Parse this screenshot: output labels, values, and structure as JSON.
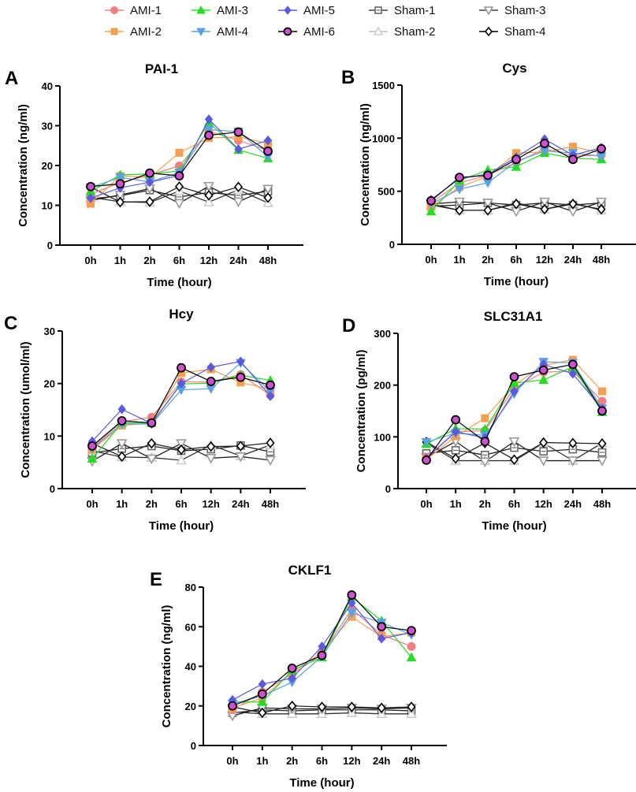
{
  "legend": {
    "placement": "top-center",
    "items": [
      {
        "name": "AMI-1",
        "color": "#f08080",
        "marker": "circle",
        "fill": "#f08080",
        "stroke": "#f08080"
      },
      {
        "name": "AMI-2",
        "color": "#f5a050",
        "marker": "square",
        "fill": "#f5a050",
        "stroke": "#f5a050"
      },
      {
        "name": "AMI-3",
        "color": "#22dd22",
        "marker": "triangle-up",
        "fill": "#22dd22",
        "stroke": "#22dd22"
      },
      {
        "name": "AMI-4",
        "color": "#5aa0e6",
        "marker": "triangle-down",
        "fill": "#5aa0e6",
        "stroke": "#5aa0e6"
      },
      {
        "name": "AMI-5",
        "color": "#5a5ae0",
        "marker": "diamond",
        "fill": "#5a5ae0",
        "stroke": "#5a5ae0"
      },
      {
        "name": "AMI-6",
        "color": "#000000",
        "marker": "circle",
        "fill": "#d050d0",
        "stroke": "#000000"
      },
      {
        "name": "Sham-1",
        "color": "#444444",
        "marker": "square-open",
        "fill": "none",
        "stroke": "#666666"
      },
      {
        "name": "Sham-2",
        "color": "#bbbbbb",
        "marker": "triangle-up-open",
        "fill": "none",
        "stroke": "#cccccc"
      },
      {
        "name": "Sham-3",
        "color": "#444444",
        "marker": "triangle-down-open",
        "fill": "none",
        "stroke": "#999999"
      },
      {
        "name": "Sham-4",
        "color": "#000000",
        "marker": "diamond-open",
        "fill": "none",
        "stroke": "#000000"
      }
    ]
  },
  "chart_data": [
    {
      "panel": "A",
      "type": "line",
      "title": "PAI-1",
      "xlabel": "Time (hour)",
      "ylabel": "Concentration (ng/ml)",
      "categories": [
        "0h",
        "1h",
        "2h",
        "6h",
        "12h",
        "24h",
        "48h"
      ],
      "ylim": [
        0,
        40
      ],
      "yticks": [
        0,
        10,
        20,
        30,
        40
      ],
      "grid": false,
      "series": [
        {
          "name": "AMI-1",
          "values": [
            12.8,
            15.7,
            17.6,
            19.9,
            28.6,
            26.3,
            23.8
          ]
        },
        {
          "name": "AMI-2",
          "values": [
            10.4,
            17.4,
            17.0,
            23.2,
            26.9,
            27.2,
            25.5
          ]
        },
        {
          "name": "AMI-3",
          "values": [
            13.5,
            17.6,
            17.9,
            18.6,
            30.8,
            23.9,
            21.8
          ]
        },
        {
          "name": "AMI-4",
          "values": [
            14.5,
            17.0,
            15.9,
            18.2,
            29.0,
            28.5,
            22.2
          ]
        },
        {
          "name": "AMI-5",
          "values": [
            11.8,
            14.4,
            15.8,
            17.5,
            31.6,
            24.1,
            26.3
          ]
        },
        {
          "name": "AMI-6",
          "values": [
            14.7,
            15.4,
            18.1,
            17.4,
            27.6,
            28.4,
            23.6
          ]
        },
        {
          "name": "Sham-1",
          "values": [
            11.6,
            12.4,
            13.8,
            12.1,
            13.2,
            12.5,
            13.5
          ]
        },
        {
          "name": "Sham-2",
          "values": [
            12.0,
            10.9,
            10.7,
            13.6,
            10.8,
            13.9,
            10.6
          ]
        },
        {
          "name": "Sham-3",
          "values": [
            11.2,
            12.6,
            14.2,
            10.5,
            14.8,
            10.9,
            14.1
          ]
        },
        {
          "name": "Sham-4",
          "values": [
            14.6,
            10.8,
            10.9,
            14.7,
            12.5,
            14.6,
            11.9
          ]
        }
      ]
    },
    {
      "panel": "B",
      "type": "line",
      "title": "Cys",
      "xlabel": "Time (hour)",
      "ylabel": "Concentration (ng/ml)",
      "categories": [
        "0h",
        "1h",
        "2h",
        "6h",
        "12h",
        "24h",
        "48h"
      ],
      "ylim": [
        0,
        1500
      ],
      "yticks": [
        0,
        500,
        1000,
        1500
      ],
      "grid": false,
      "series": [
        {
          "name": "AMI-1",
          "values": [
            390,
            580,
            650,
            770,
            900,
            830,
            840
          ]
        },
        {
          "name": "AMI-2",
          "values": [
            350,
            540,
            640,
            860,
            870,
            920,
            860
          ]
        },
        {
          "name": "AMI-3",
          "values": [
            310,
            600,
            700,
            730,
            860,
            810,
            800
          ]
        },
        {
          "name": "AMI-4",
          "values": [
            380,
            520,
            580,
            780,
            880,
            860,
            830
          ]
        },
        {
          "name": "AMI-5",
          "values": [
            420,
            620,
            660,
            820,
            990,
            840,
            910
          ]
        },
        {
          "name": "AMI-6",
          "values": [
            410,
            630,
            650,
            800,
            950,
            800,
            900
          ]
        },
        {
          "name": "Sham-1",
          "values": [
            360,
            370,
            390,
            370,
            390,
            370,
            390
          ]
        },
        {
          "name": "Sham-2",
          "values": [
            370,
            320,
            320,
            390,
            330,
            390,
            320
          ]
        },
        {
          "name": "Sham-3",
          "values": [
            380,
            400,
            390,
            310,
            400,
            310,
            400
          ]
        },
        {
          "name": "Sham-4",
          "values": [
            380,
            320,
            320,
            380,
            330,
            380,
            330
          ]
        }
      ]
    },
    {
      "panel": "C",
      "type": "line",
      "title": "Hcy",
      "xlabel": "Time (hour)",
      "ylabel": "Concentration (umol/ml)",
      "categories": [
        "0h",
        "1h",
        "2h",
        "6h",
        "12h",
        "24h",
        "48h"
      ],
      "ylim": [
        0,
        30
      ],
      "yticks": [
        0,
        10,
        20,
        30
      ],
      "grid": false,
      "series": [
        {
          "name": "AMI-1",
          "values": [
            7.8,
            12.7,
            13.6,
            20.3,
            20.3,
            21.7,
            17.8
          ]
        },
        {
          "name": "AMI-2",
          "values": [
            7.4,
            12.0,
            12.5,
            22.0,
            22.7,
            20.2,
            18.9
          ]
        },
        {
          "name": "AMI-3",
          "values": [
            5.7,
            12.5,
            12.5,
            19.9,
            20.1,
            21.6,
            20.6
          ]
        },
        {
          "name": "AMI-4",
          "values": [
            7.6,
            12.3,
            12.3,
            18.8,
            19.0,
            23.9,
            18.5
          ]
        },
        {
          "name": "AMI-5",
          "values": [
            9.0,
            15.1,
            12.4,
            20.0,
            23.1,
            24.2,
            17.6
          ]
        },
        {
          "name": "AMI-6",
          "values": [
            8.1,
            12.9,
            12.5,
            23.0,
            20.4,
            21.2,
            19.7
          ]
        },
        {
          "name": "Sham-1",
          "values": [
            6.8,
            7.6,
            8.1,
            7.2,
            7.5,
            8.2,
            7.0
          ]
        },
        {
          "name": "Sham-2",
          "values": [
            7.2,
            6.0,
            5.9,
            5.4,
            8.3,
            6.2,
            8.3
          ]
        },
        {
          "name": "Sham-3",
          "values": [
            5.2,
            8.6,
            5.7,
            8.6,
            5.8,
            6.1,
            5.4
          ]
        },
        {
          "name": "Sham-4",
          "values": [
            8.6,
            6.1,
            8.6,
            7.4,
            8.0,
            8.1,
            8.7
          ]
        }
      ]
    },
    {
      "panel": "D",
      "type": "line",
      "title": "SLC31A1",
      "xlabel": "Time (hour)",
      "ylabel": "Concentration (pg/ml)",
      "categories": [
        "0h",
        "1h",
        "2h",
        "6h",
        "12h",
        "24h",
        "48h"
      ],
      "ylim": [
        0,
        300
      ],
      "yticks": [
        0,
        100,
        200,
        300
      ],
      "grid": false,
      "series": [
        {
          "name": "AMI-1",
          "values": [
            60,
            110,
            112,
            194,
            225,
            227,
            169
          ]
        },
        {
          "name": "AMI-2",
          "values": [
            56,
            101,
            136,
            200,
            238,
            249,
            188
          ]
        },
        {
          "name": "AMI-3",
          "values": [
            86,
            116,
            115,
            204,
            210,
            235,
            148
          ]
        },
        {
          "name": "AMI-4",
          "values": [
            90,
            107,
            103,
            183,
            245,
            243,
            155
          ]
        },
        {
          "name": "AMI-5",
          "values": [
            58,
            110,
            98,
            188,
            240,
            222,
            154
          ]
        },
        {
          "name": "AMI-6",
          "values": [
            55,
            133,
            91,
            216,
            229,
            240,
            150
          ]
        },
        {
          "name": "Sham-1",
          "values": [
            68,
            74,
            65,
            79,
            72,
            76,
            70
          ]
        },
        {
          "name": "Sham-2",
          "values": [
            88,
            54,
            54,
            54,
            88,
            54,
            88
          ]
        },
        {
          "name": "Sham-3",
          "values": [
            60,
            91,
            52,
            91,
            54,
            54,
            54
          ]
        },
        {
          "name": "Sham-4",
          "values": [
            90,
            58,
            88,
            56,
            89,
            88,
            87
          ]
        }
      ]
    },
    {
      "panel": "E",
      "type": "line",
      "title": "CKLF1",
      "xlabel": "Time (hour)",
      "ylabel": "Concentration (ng/ml)",
      "categories": [
        "0h",
        "1h",
        "2h",
        "6h",
        "12h",
        "24h",
        "48h"
      ],
      "ylim": [
        0,
        80
      ],
      "yticks": [
        0,
        20,
        40,
        60,
        80
      ],
      "grid": false,
      "series": [
        {
          "name": "AMI-1",
          "values": [
            18.0,
            27.0,
            36.0,
            46.0,
            69.0,
            56.0,
            50.0
          ]
        },
        {
          "name": "AMI-2",
          "values": [
            19.0,
            24.0,
            37.0,
            47.0,
            65.0,
            55.0,
            57.0
          ]
        },
        {
          "name": "AMI-3",
          "values": [
            22.0,
            22.0,
            38.0,
            44.5,
            75.0,
            63.0,
            44.5
          ]
        },
        {
          "name": "AMI-4",
          "values": [
            21.0,
            25.0,
            32.0,
            45.0,
            67.0,
            62.0,
            56.0
          ]
        },
        {
          "name": "AMI-5",
          "values": [
            23.0,
            31.0,
            34.0,
            50.0,
            72.0,
            54.0,
            57.0
          ]
        },
        {
          "name": "AMI-6",
          "values": [
            20.0,
            26.0,
            39.0,
            45.5,
            76.0,
            60.0,
            58.0
          ]
        },
        {
          "name": "Sham-1",
          "values": [
            16.5,
            18.0,
            17.5,
            18.0,
            18.0,
            18.0,
            17.5
          ]
        },
        {
          "name": "Sham-2",
          "values": [
            17.0,
            16.0,
            16.0,
            16.0,
            16.5,
            16.0,
            16.0
          ]
        },
        {
          "name": "Sham-3",
          "values": [
            15.0,
            19.0,
            18.5,
            18.5,
            19.0,
            18.5,
            19.0
          ]
        },
        {
          "name": "Sham-4",
          "values": [
            19.5,
            16.5,
            20.0,
            19.5,
            19.5,
            19.0,
            19.5
          ]
        }
      ]
    }
  ]
}
